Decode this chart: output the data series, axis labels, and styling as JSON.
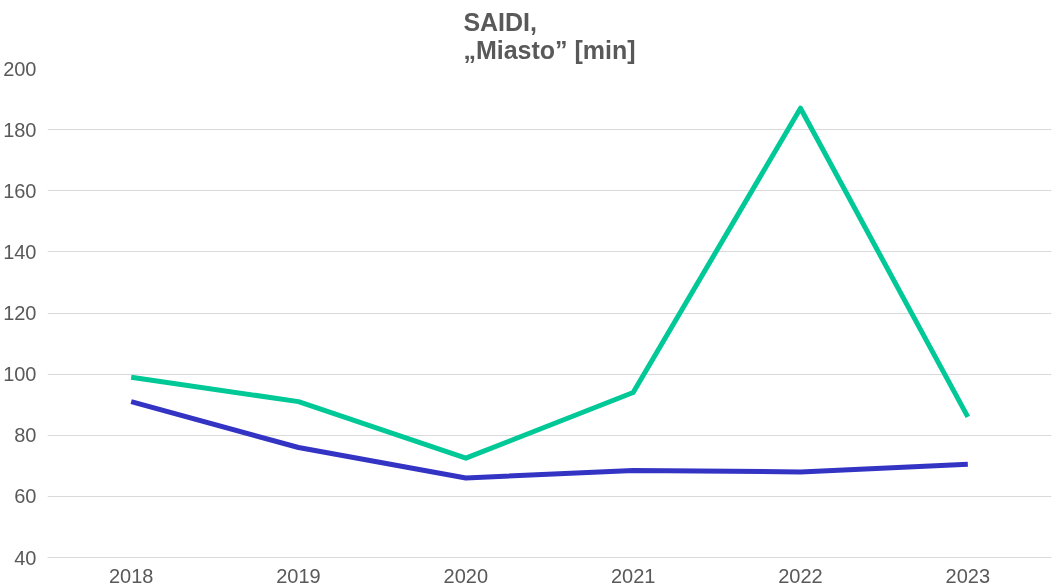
{
  "chart_data": {
    "type": "line",
    "title": "SAIDI,\n„Miasto” [min]",
    "categories": [
      "2018",
      "2019",
      "2020",
      "2021",
      "2022",
      "2023"
    ],
    "series": [
      {
        "color": "#00c896",
        "values": [
          99,
          91,
          72.5,
          94,
          187,
          86
        ]
      },
      {
        "color": "#3333c4",
        "values": [
          91,
          76,
          66,
          68.5,
          68,
          70.5
        ]
      }
    ],
    "ylim": [
      40,
      200
    ],
    "yticks": [
      40,
      60,
      80,
      100,
      120,
      140,
      160,
      180,
      200
    ],
    "grid": "y",
    "marker": "none",
    "line_style": "solid"
  }
}
